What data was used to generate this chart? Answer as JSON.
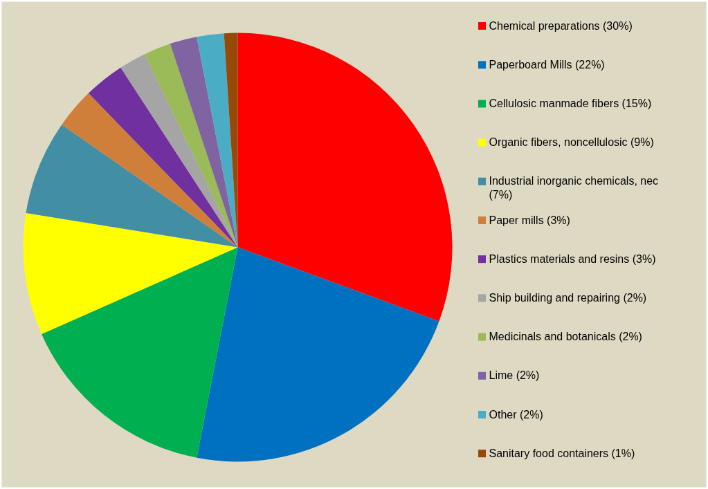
{
  "chart_data": {
    "type": "pie",
    "categories": [
      "Chemical preparations (30%)",
      "Paperboard Mills (22%)",
      "Cellulosic manmade fibers (15%)",
      "Organic fibers, noncellulosic (9%)",
      "Industrial inorganic chemicals, nec (7%)",
      "Paper mills (3%)",
      "Plastics materials and resins (3%)",
      "Ship building and repairing (2%)",
      "Medicinals and botanicals (2%)",
      "Lime (2%)",
      "Other (2%)",
      "Sanitary food containers (1%)"
    ],
    "values": [
      30,
      22,
      15,
      9,
      7,
      3,
      3,
      2,
      2,
      2,
      2,
      1
    ],
    "colors": [
      "#ff0000",
      "#0070c0",
      "#00b050",
      "#ffff00",
      "#418ea5",
      "#d07f3a",
      "#7030a0",
      "#a5a5a5",
      "#9bbb59",
      "#8064a2",
      "#4bacc6",
      "#984807"
    ],
    "legend": "right"
  }
}
